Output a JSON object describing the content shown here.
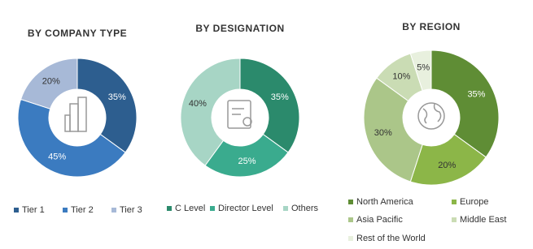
{
  "chart_data": [
    {
      "type": "pie",
      "title": "BY COMPANY TYPE",
      "categories": [
        "Tier 1",
        "Tier 2",
        "Tier 3"
      ],
      "values": [
        35,
        45,
        20
      ],
      "value_labels": [
        "35%",
        "45%",
        "20%"
      ],
      "colors": [
        "#2d5e8f",
        "#3b7bc0",
        "#a7b9d7"
      ]
    },
    {
      "type": "pie",
      "title": "BY DESIGNATION",
      "categories": [
        "C Level",
        "Director Level",
        "Others"
      ],
      "values": [
        35,
        25,
        40
      ],
      "value_labels": [
        "35%",
        "25%",
        "40%"
      ],
      "colors": [
        "#2b8a6c",
        "#3aab8e",
        "#a7d5c5"
      ]
    },
    {
      "type": "pie",
      "title": "BY REGION",
      "categories": [
        "North America",
        "Europe",
        "Asia Pacific",
        "Middle East",
        "Rest of the World"
      ],
      "values": [
        35,
        20,
        30,
        10,
        5
      ],
      "value_labels": [
        "35%",
        "20%",
        "30%",
        "10%",
        "5%"
      ],
      "colors": [
        "#5f8d35",
        "#8cb648",
        "#abc689",
        "#cadcb4",
        "#e8f0de"
      ]
    }
  ]
}
